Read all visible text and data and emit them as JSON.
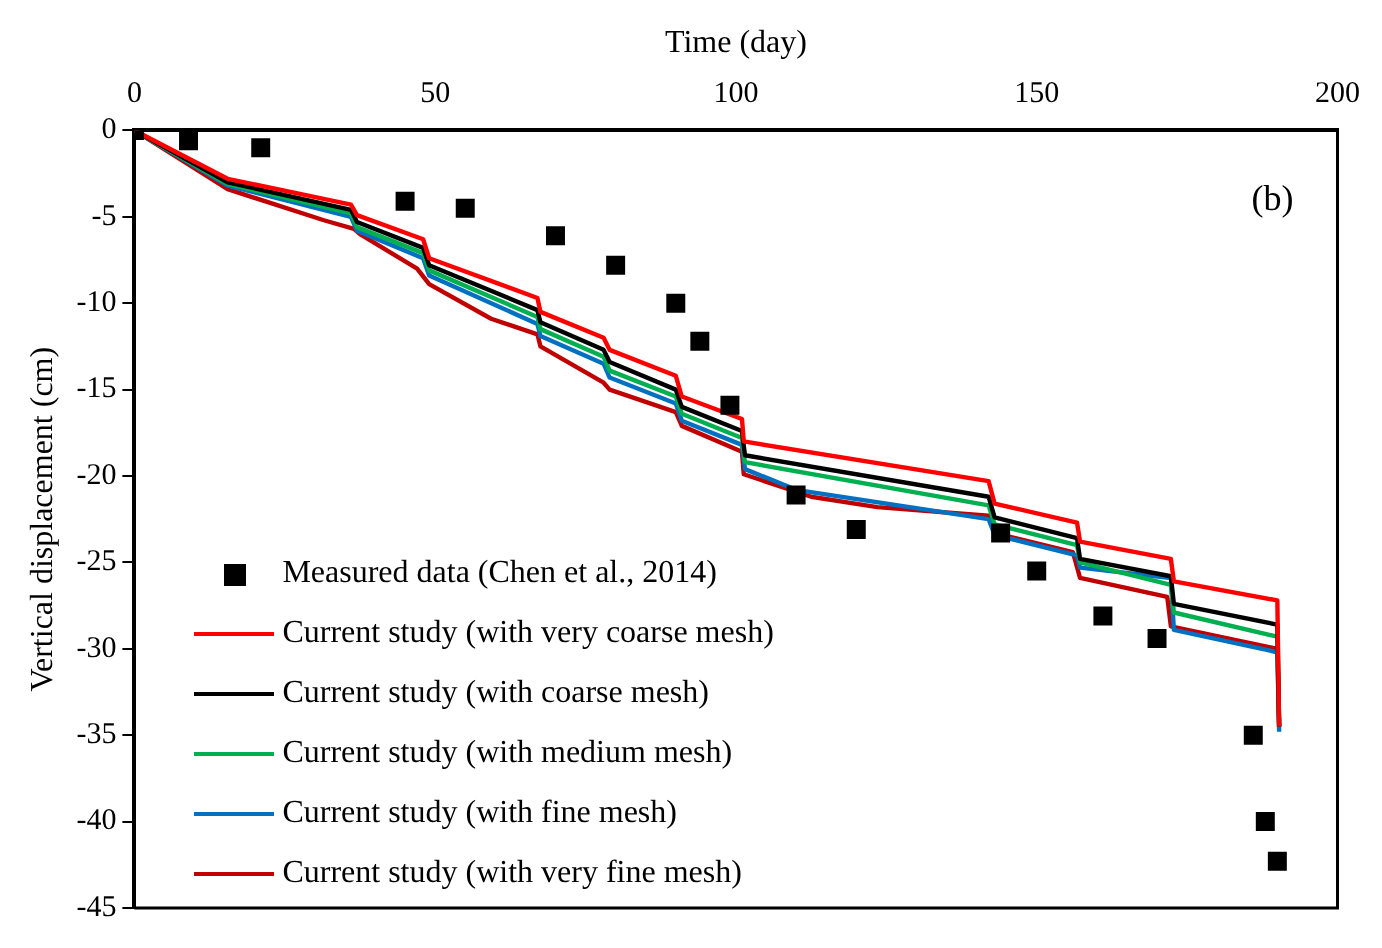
{
  "chart_data": {
    "type": "line",
    "xlabel": "Time (day)",
    "ylabel": "Vertical displacement (cm)",
    "annotations": [
      "(b)"
    ],
    "xlim": [
      0,
      200
    ],
    "xticks": [
      0,
      50,
      100,
      150,
      200
    ],
    "ylim": [
      -45,
      0
    ],
    "yticks": [
      0,
      -5,
      -10,
      -15,
      -20,
      -25,
      -30,
      -35,
      -40,
      -45
    ],
    "grid": false,
    "legend": "bottom left",
    "line_style": "solid",
    "series": [
      {
        "name": "Measured data (Chen et al., 2014)",
        "type": "scatter",
        "marker": "square",
        "color": "#000000",
        "x": [
          0,
          9,
          21,
          45,
          55,
          70,
          80,
          90,
          94,
          99,
          110,
          120,
          144,
          150,
          161,
          170,
          186,
          188,
          190
        ],
        "values": [
          0,
          -0.6,
          -1.0,
          -4.1,
          -4.5,
          -6.1,
          -7.8,
          -10.0,
          -12.2,
          -15.9,
          -21.1,
          -23.1,
          -23.3,
          -25.5,
          -28.1,
          -29.4,
          -35.0,
          -40.0,
          -42.3
        ]
      },
      {
        "name": "Current study (with very coarse mesh)",
        "color": "#ff0000",
        "x": [
          0,
          15.5,
          36,
          37,
          48,
          49,
          67,
          67.5,
          78,
          79,
          90,
          91,
          101,
          101.3,
          142,
          143,
          156.7,
          157.2,
          172.3,
          172.8,
          190,
          190.3
        ],
        "values": [
          0,
          -2.8,
          -4.3,
          -4.9,
          -6.3,
          -7.4,
          -9.7,
          -10.5,
          -12.0,
          -12.7,
          -14.2,
          -15.4,
          -16.7,
          -18.0,
          -20.3,
          -21.6,
          -22.7,
          -23.8,
          -24.8,
          -26.1,
          -27.2,
          -34.5
        ]
      },
      {
        "name": "Current study (with coarse mesh)",
        "color": "#000000",
        "x": [
          0,
          15.5,
          36,
          37,
          48,
          49,
          67,
          67.5,
          78,
          79,
          90,
          91,
          101,
          101.5,
          142,
          143,
          156.7,
          157.2,
          172.3,
          172.8,
          190,
          190.3
        ],
        "values": [
          0,
          -3.0,
          -4.6,
          -5.3,
          -6.8,
          -7.8,
          -10.4,
          -11.1,
          -12.7,
          -13.4,
          -15.0,
          -16.0,
          -17.4,
          -18.8,
          -21.2,
          -22.4,
          -23.6,
          -24.8,
          -25.8,
          -27.4,
          -28.6,
          -34.5
        ]
      },
      {
        "name": "Current study (with medium mesh)",
        "color": "#00b050",
        "x": [
          0,
          15.5,
          36,
          37,
          48,
          49,
          67,
          67.5,
          78,
          79,
          90,
          91,
          101,
          101.5,
          142,
          143,
          156.7,
          157.2,
          172.3,
          172.8,
          190,
          190.3
        ],
        "values": [
          0,
          -3.1,
          -4.8,
          -5.6,
          -7.1,
          -8.1,
          -10.8,
          -11.5,
          -13.1,
          -13.9,
          -15.4,
          -16.4,
          -17.8,
          -19.2,
          -21.7,
          -22.8,
          -24.0,
          -25.0,
          -26.3,
          -27.9,
          -29.3,
          -34.5
        ]
      },
      {
        "name": "Current study (with fine mesh)",
        "color": "#0070c0",
        "x": [
          0,
          15.5,
          36,
          37,
          48,
          49,
          67,
          67.5,
          78,
          79,
          90,
          91,
          101,
          101.5,
          110,
          142,
          143,
          156.7,
          157.2,
          172.3,
          172.8,
          190,
          190.3
        ],
        "values": [
          0,
          -3.2,
          -5.0,
          -5.8,
          -7.4,
          -8.4,
          -11.2,
          -11.9,
          -13.5,
          -14.3,
          -15.8,
          -16.8,
          -18.2,
          -19.6,
          -20.8,
          -22.5,
          -23.4,
          -24.6,
          -25.3,
          -25.9,
          -28.9,
          -30.2,
          -34.8
        ]
      },
      {
        "name": "Current study (with very fine mesh)",
        "color": "#c00000",
        "x": [
          0,
          15.5,
          31.5,
          36.5,
          37.5,
          47,
          49,
          59.3,
          67,
          67.5,
          78,
          79,
          90,
          91,
          101,
          101.3,
          112.5,
          123.5,
          142,
          143,
          156,
          157.2,
          171.7,
          172.3,
          190,
          190.3
        ],
        "values": [
          0,
          -3.4,
          -5.2,
          -5.7,
          -6.0,
          -8.0,
          -8.9,
          -10.9,
          -11.8,
          -12.5,
          -14.6,
          -15.0,
          -16.3,
          -17.1,
          -18.6,
          -19.9,
          -21.2,
          -21.8,
          -22.3,
          -23.3,
          -24.4,
          -25.9,
          -27.0,
          -28.7,
          -30.0,
          -34.5
        ]
      }
    ]
  }
}
